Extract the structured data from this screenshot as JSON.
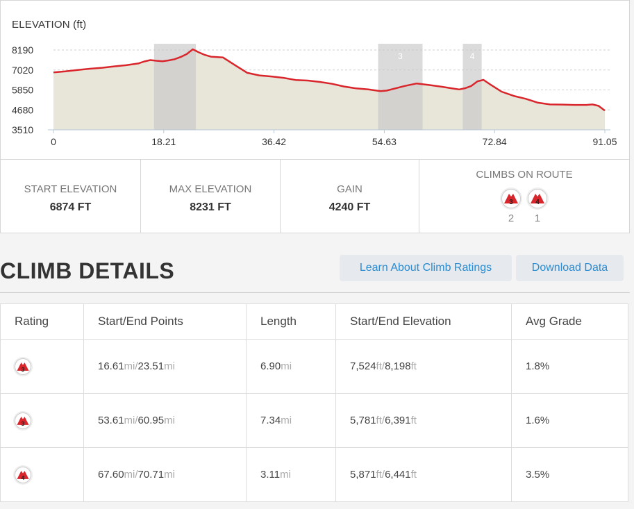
{
  "chart_data": {
    "type": "area",
    "title": "ELEVATION (ft)",
    "x_ticks": [
      "0",
      "18.21",
      "36.42",
      "54.63",
      "72.84",
      "91.05"
    ],
    "y_ticks": [
      "3510",
      "4680",
      "5850",
      "7020",
      "8190"
    ],
    "xlim": [
      0,
      91.05
    ],
    "ylim": [
      3510,
      8190
    ],
    "grid": true,
    "colors": {
      "line": "#d9262c",
      "fill": "#e7e6d9",
      "highlight": "#c8c8c8"
    },
    "highlight_regions": [
      {
        "x0": 16.61,
        "x1": 23.51,
        "label": ""
      },
      {
        "x0": 53.61,
        "x1": 60.95,
        "label": "3"
      },
      {
        "x0": 67.6,
        "x1": 70.71,
        "label": "4"
      }
    ],
    "x": [
      0,
      2,
      4,
      6,
      8,
      10,
      12,
      14,
      15,
      16,
      17,
      18,
      19,
      20,
      21,
      22,
      23,
      24,
      25,
      26,
      28,
      30,
      32,
      34,
      36,
      38,
      40,
      42,
      44,
      46,
      48,
      50,
      52,
      54,
      55,
      56,
      58,
      60,
      62,
      64,
      66,
      67,
      68,
      69,
      70,
      71,
      72,
      74,
      76,
      78,
      80,
      82,
      84,
      86,
      88,
      89,
      90,
      91.05
    ],
    "y": [
      6874,
      6940,
      7020,
      7090,
      7150,
      7230,
      7300,
      7400,
      7520,
      7600,
      7560,
      7530,
      7580,
      7650,
      7780,
      7950,
      8231,
      8050,
      7900,
      7800,
      7750,
      7300,
      6850,
      6700,
      6640,
      6560,
      6430,
      6400,
      6320,
      6210,
      6050,
      5940,
      5880,
      5780,
      5810,
      5900,
      6080,
      6230,
      6140,
      6040,
      5930,
      5880,
      5950,
      6080,
      6350,
      6440,
      6200,
      5750,
      5500,
      5330,
      5100,
      5000,
      4990,
      4970,
      4970,
      5000,
      4920,
      4640
    ]
  },
  "stats": {
    "start_label": "START ELEVATION",
    "start_value": "6874 FT",
    "max_label": "MAX ELEVATION",
    "max_value": "8231 FT",
    "gain_label": "GAIN",
    "gain_value": "4240 FT",
    "climbs_label": "CLIMBS ON ROUTE",
    "climbs": [
      {
        "category": "3",
        "count": "2"
      },
      {
        "category": "4",
        "count": "1"
      }
    ]
  },
  "climb_details": {
    "heading": "CLIMB DETAILS",
    "learn_button": "Learn About Climb Ratings",
    "download_button": "Download Data"
  },
  "table": {
    "headers": [
      "Rating",
      "Start/End Points",
      "Length",
      "Start/End Elevation",
      "Avg Grade"
    ],
    "rows": [
      {
        "rating": "3",
        "start_pt": "16.61",
        "end_pt": "23.51",
        "length": "6.90",
        "start_elev": "7,524",
        "end_elev": "8,198",
        "grade": "1.8%"
      },
      {
        "rating": "3",
        "start_pt": "53.61",
        "end_pt": "60.95",
        "length": "7.34",
        "start_elev": "5,781",
        "end_elev": "6,391",
        "grade": "1.6%"
      },
      {
        "rating": "4",
        "start_pt": "67.60",
        "end_pt": "70.71",
        "length": "3.11",
        "start_elev": "5,871",
        "end_elev": "6,441",
        "grade": "3.5%"
      }
    ],
    "dist_unit": "mi",
    "sep": "/",
    "elev_unit": "ft"
  }
}
